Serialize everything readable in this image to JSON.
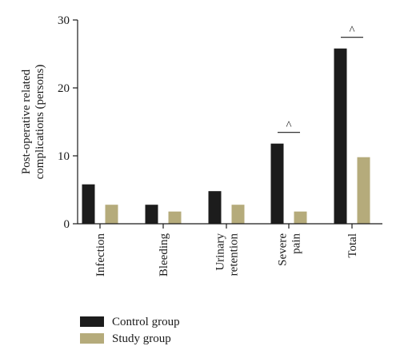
{
  "chart_data": {
    "type": "bar",
    "categories": [
      [
        "Infection"
      ],
      [
        "Bleeding"
      ],
      [
        "Urinary",
        "retention"
      ],
      [
        "Severe",
        "pain"
      ],
      [
        "Total"
      ]
    ],
    "series": [
      {
        "name": "Control group",
        "color": "#1c1c1c",
        "values": [
          5.8,
          2.8,
          4.8,
          11.8,
          25.8
        ]
      },
      {
        "name": "Study group",
        "color": "#b5ab7b",
        "values": [
          2.8,
          1.8,
          2.8,
          1.8,
          9.8
        ]
      }
    ],
    "ylabel": [
      "Post-operative related",
      "complications (persons)"
    ],
    "ylim": [
      0,
      30
    ],
    "yticks": [
      0,
      10,
      20,
      30
    ],
    "annotations": [
      {
        "category_index": 3,
        "text": "^"
      },
      {
        "category_index": 4,
        "text": "^"
      }
    ],
    "legend_position": "bottom-left",
    "grid": false
  }
}
